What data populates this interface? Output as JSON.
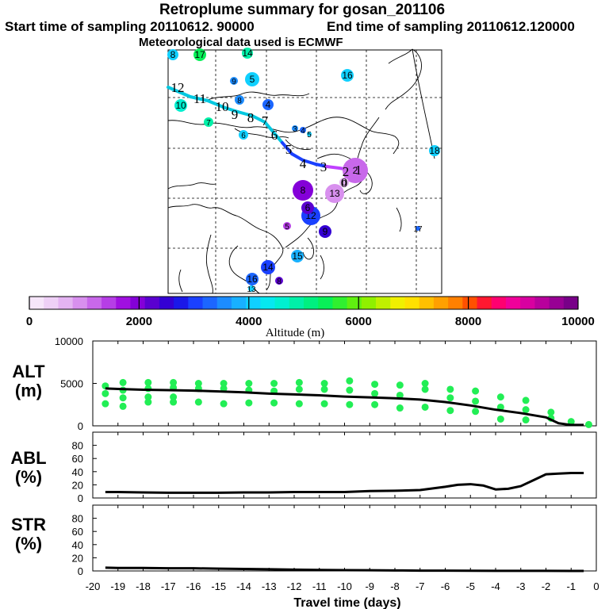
{
  "header": {
    "title": "Retroplume summary for gosan_201106",
    "start_label": "Start time of sampling 20110612. 90000",
    "end_label": "End time of sampling 20110612.120000",
    "met_label": "Meteorological data used is ECMWF"
  },
  "colors": {
    "track_high": "#00c8e0",
    "track_mid": "#1a40ff",
    "track_low": "#c040ff",
    "alt_dots": "#22ee55",
    "lines": "#000000"
  },
  "colorbar": {
    "label": "Altitude (m)",
    "ticks": [
      "0",
      "2000",
      "4000",
      "6000",
      "8000",
      "10000"
    ],
    "segments": [
      "#f6e6fa",
      "#eed0f6",
      "#e4b4f2",
      "#d890ee",
      "#c868ea",
      "#b63ee6",
      "#a010e0",
      "#8400d8",
      "#5a00d0",
      "#3400d4",
      "#1a18e8",
      "#1a40ff",
      "#1c66ff",
      "#1c8cff",
      "#18b0ff",
      "#10d0ff",
      "#06e8f0",
      "#00f0d0",
      "#00f0a8",
      "#00f080",
      "#08f058",
      "#30f030",
      "#60f010",
      "#90f000",
      "#c0f000",
      "#f0f000",
      "#ffe000",
      "#ffc000",
      "#ffa000",
      "#ff8000",
      "#ff5000",
      "#ff1830",
      "#ff0070",
      "#f0009a",
      "#d800a0",
      "#b8009c",
      "#980094",
      "#780088"
    ]
  },
  "map": {
    "track_labels": [
      "12",
      "11",
      "10",
      "9",
      "8",
      "7",
      "6",
      "5",
      "4",
      "3",
      "2",
      "1",
      "0"
    ],
    "clusters": [
      {
        "label": "8",
        "color": "#10d0ff"
      },
      {
        "label": "17",
        "color": "#08f058"
      },
      {
        "label": "14",
        "color": "#00f0a8"
      },
      {
        "label": "9",
        "color": "#1c8cff"
      },
      {
        "label": "5",
        "color": "#10d0ff"
      },
      {
        "label": "16",
        "color": "#10d0ff"
      },
      {
        "label": "8",
        "color": "#1c8cff"
      },
      {
        "label": "4",
        "color": "#1c66ff"
      },
      {
        "label": "10",
        "color": "#00f0d0"
      },
      {
        "label": "7",
        "color": "#00f0a8"
      },
      {
        "label": "6",
        "color": "#10d0ff"
      },
      {
        "label": "3",
        "color": "#1c8cff"
      },
      {
        "label": "4",
        "color": "#1c66ff"
      },
      {
        "label": "5",
        "color": "#10d0ff"
      },
      {
        "label": "18",
        "color": "#10d0ff"
      },
      {
        "label": "2",
        "color": "#c868ea"
      },
      {
        "label": "0",
        "color": "#e4b4f2"
      },
      {
        "label": "8",
        "color": "#8400d8"
      },
      {
        "label": "13",
        "color": "#d890ee"
      },
      {
        "label": "12",
        "color": "#1a40ff"
      },
      {
        "label": "9",
        "color": "#3400d4"
      },
      {
        "label": "5",
        "color": "#b63ee6"
      },
      {
        "label": "6",
        "color": "#5a00d0"
      },
      {
        "label": "15",
        "color": "#18b0ff"
      },
      {
        "label": "17",
        "color": "#1c66ff"
      },
      {
        "label": "14",
        "color": "#1a40ff"
      },
      {
        "label": "16",
        "color": "#1c66ff"
      },
      {
        "label": "8",
        "color": "#5a00d0"
      },
      {
        "label": "13",
        "color": "#10d0ff"
      }
    ]
  },
  "chart_data": [
    {
      "type": "line",
      "panel": "ALT",
      "ylabel": "ALT\n(m)",
      "ylim": [
        0,
        10000
      ],
      "yticks": [
        "10000",
        "5000",
        "0"
      ],
      "x": [
        -19.5,
        -19,
        -18,
        -17,
        -16,
        -15,
        -14,
        -13,
        -12,
        -11,
        -10,
        -9,
        -8,
        -7,
        -6,
        -5,
        -4,
        -3,
        -2,
        -1.5,
        -1,
        -0.5
      ],
      "values": [
        4400,
        4350,
        4250,
        4200,
        4150,
        4050,
        3950,
        3800,
        3700,
        3600,
        3450,
        3350,
        3250,
        3100,
        2800,
        2400,
        1900,
        1500,
        1000,
        300,
        100,
        100
      ],
      "scatter": [
        {
          "x": -19.5,
          "y": 4700
        },
        {
          "x": -19.5,
          "y": 3800
        },
        {
          "x": -19.5,
          "y": 2600
        },
        {
          "x": -18.8,
          "y": 5100
        },
        {
          "x": -18.8,
          "y": 4200
        },
        {
          "x": -18.8,
          "y": 3300
        },
        {
          "x": -18.8,
          "y": 2300
        },
        {
          "x": -17.8,
          "y": 5100
        },
        {
          "x": -17.8,
          "y": 4400
        },
        {
          "x": -17.8,
          "y": 3400
        },
        {
          "x": -17.8,
          "y": 2800
        },
        {
          "x": -16.8,
          "y": 5100
        },
        {
          "x": -16.8,
          "y": 4500
        },
        {
          "x": -16.8,
          "y": 3400
        },
        {
          "x": -16.8,
          "y": 2800
        },
        {
          "x": -15.8,
          "y": 5000
        },
        {
          "x": -15.8,
          "y": 4400
        },
        {
          "x": -15.8,
          "y": 2800
        },
        {
          "x": -14.8,
          "y": 5000
        },
        {
          "x": -14.8,
          "y": 4400
        },
        {
          "x": -14.8,
          "y": 2600
        },
        {
          "x": -13.8,
          "y": 5000
        },
        {
          "x": -13.8,
          "y": 4200
        },
        {
          "x": -13.8,
          "y": 2700
        },
        {
          "x": -12.8,
          "y": 5000
        },
        {
          "x": -12.8,
          "y": 4100
        },
        {
          "x": -12.8,
          "y": 2700
        },
        {
          "x": -11.8,
          "y": 5100
        },
        {
          "x": -11.8,
          "y": 4300
        },
        {
          "x": -11.8,
          "y": 2600
        },
        {
          "x": -10.8,
          "y": 5000
        },
        {
          "x": -10.8,
          "y": 4300
        },
        {
          "x": -10.8,
          "y": 2600
        },
        {
          "x": -9.8,
          "y": 5300
        },
        {
          "x": -9.8,
          "y": 4200
        },
        {
          "x": -9.8,
          "y": 2500
        },
        {
          "x": -8.8,
          "y": 4900
        },
        {
          "x": -8.8,
          "y": 3800
        },
        {
          "x": -8.8,
          "y": 2500
        },
        {
          "x": -7.8,
          "y": 4800
        },
        {
          "x": -7.8,
          "y": 3600
        },
        {
          "x": -7.8,
          "y": 2100
        },
        {
          "x": -6.8,
          "y": 5000
        },
        {
          "x": -6.8,
          "y": 4300
        },
        {
          "x": -6.8,
          "y": 2200
        },
        {
          "x": -5.8,
          "y": 4300
        },
        {
          "x": -5.8,
          "y": 3300
        },
        {
          "x": -5.8,
          "y": 1800
        },
        {
          "x": -4.8,
          "y": 4100
        },
        {
          "x": -4.8,
          "y": 2900
        },
        {
          "x": -4.8,
          "y": 1700
        },
        {
          "x": -3.8,
          "y": 3400
        },
        {
          "x": -3.8,
          "y": 2200
        },
        {
          "x": -3.8,
          "y": 800
        },
        {
          "x": -2.8,
          "y": 3000
        },
        {
          "x": -2.8,
          "y": 1900
        },
        {
          "x": -2.8,
          "y": 700
        },
        {
          "x": -1.8,
          "y": 1600
        },
        {
          "x": -1.8,
          "y": 900
        },
        {
          "x": -1.0,
          "y": 500
        },
        {
          "x": -0.3,
          "y": 150
        }
      ]
    },
    {
      "type": "line",
      "panel": "ABL",
      "ylabel": "ABL\n(%)",
      "ylim": [
        0,
        100
      ],
      "yticks": [
        "80",
        "60",
        "40",
        "20",
        "0"
      ],
      "x": [
        -19.5,
        -19,
        -18,
        -17,
        -16,
        -15,
        -14,
        -13,
        -12,
        -11,
        -10,
        -9,
        -8,
        -7,
        -6,
        -5.5,
        -5,
        -4.5,
        -4,
        -3.5,
        -3,
        -2.5,
        -2,
        -1.5,
        -1,
        -0.5
      ],
      "values": [
        9,
        9,
        8.5,
        8,
        8,
        8,
        8.5,
        8.5,
        9,
        9,
        9,
        10.5,
        11,
        12,
        17,
        20,
        21,
        19,
        13,
        14,
        18,
        27,
        36,
        37,
        38,
        38
      ]
    },
    {
      "type": "line",
      "panel": "STR",
      "ylabel": "STR\n(%)",
      "ylim": [
        0,
        100
      ],
      "yticks": [
        "80",
        "60",
        "40",
        "20",
        "0"
      ],
      "x": [
        -19.5,
        -19,
        -18,
        -17,
        -16,
        -15,
        -14,
        -13,
        -12,
        -11,
        -10,
        -9,
        -8,
        -7,
        -6,
        -5,
        -4,
        -3,
        -2,
        -1,
        -0.5
      ],
      "values": [
        5,
        4.5,
        4.5,
        4,
        4,
        3.5,
        3,
        2.5,
        2,
        1.5,
        1.2,
        1,
        0.8,
        0.5,
        0.4,
        0.3,
        0.2,
        0.1,
        0.1,
        0,
        0
      ]
    }
  ],
  "xaxis": {
    "label": "Travel time (days)",
    "ticks": [
      "-20",
      "-19",
      "-18",
      "-17",
      "-16",
      "-15",
      "-14",
      "-13",
      "-12",
      "-11",
      "-10",
      "-9",
      "-8",
      "-7",
      "-6",
      "-5",
      "-4",
      "-3",
      "-2",
      "-1",
      "0"
    ]
  }
}
